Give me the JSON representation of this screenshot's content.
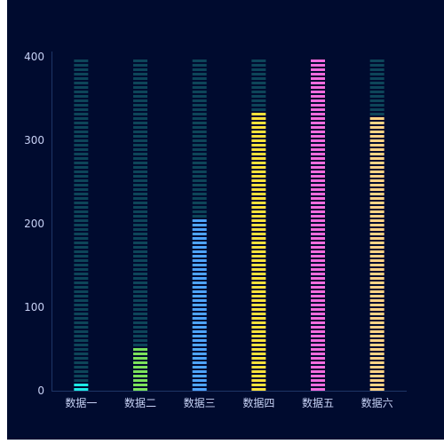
{
  "chart_data": {
    "type": "bar",
    "style": "segmented-bars-with-track",
    "categories": [
      "数据一",
      "数据二",
      "数据三",
      "数据四",
      "数据五",
      "数据六"
    ],
    "values": [
      10,
      55,
      205,
      337,
      400,
      330
    ],
    "ylim": [
      0,
      400
    ],
    "yticks": [
      0,
      100,
      200,
      300,
      400
    ],
    "grid": false,
    "colors": {
      "track": "#0d4559",
      "bars": [
        "#1de9e6",
        "#7be25a",
        "#4ea4ff",
        "#ffe23a",
        "#f36cde",
        "#ffd385"
      ],
      "axis": "#1e3566",
      "tick_label": "#c7d2f5",
      "background": "#000b2f"
    },
    "title": "",
    "xlabel": "",
    "ylabel": ""
  }
}
